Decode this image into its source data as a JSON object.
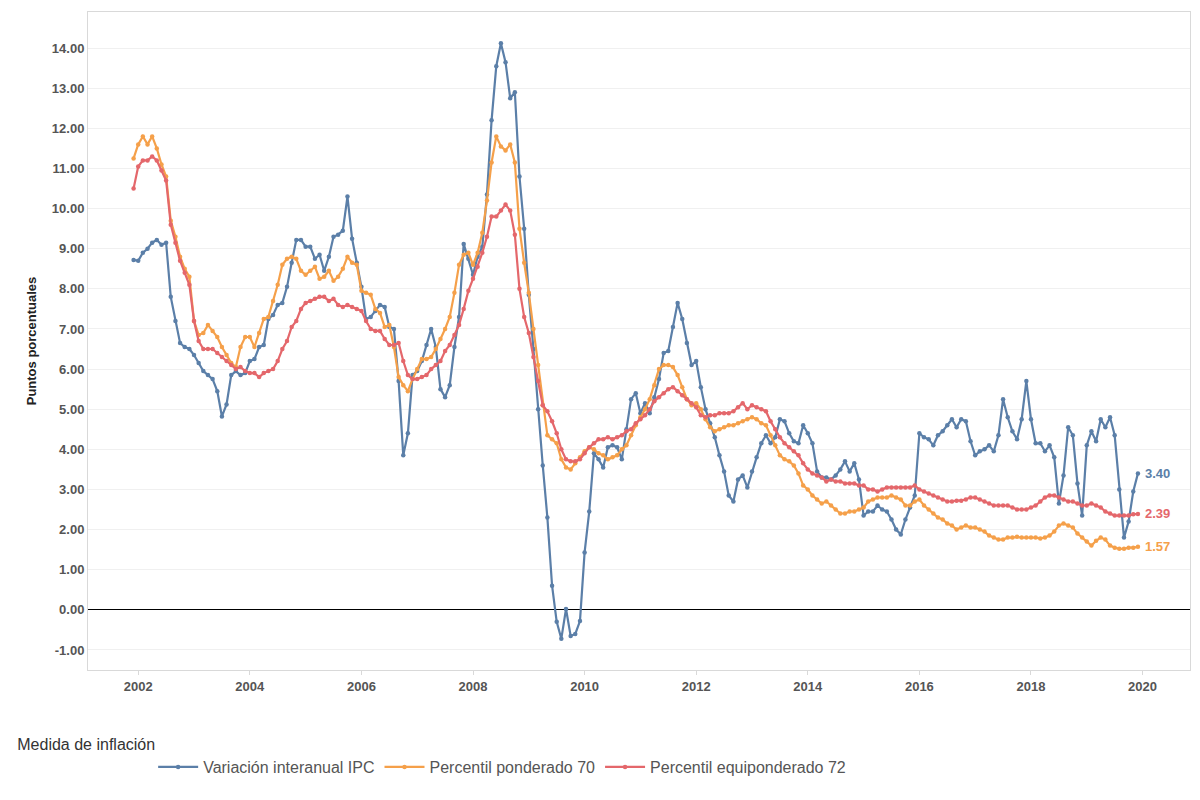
{
  "chart_data": {
    "type": "line",
    "ylabel": "Puntos porcentuales",
    "legend_title": "Medida de inflación",
    "legend": "bottom-left",
    "grid": true,
    "marker": "circle",
    "line_style": "solid",
    "xlim": [
      2001.1,
      2020.85
    ],
    "xticks": [
      2002,
      2004,
      2006,
      2008,
      2010,
      2012,
      2014,
      2016,
      2018,
      2020
    ],
    "ylim": [
      -1.5,
      14.9
    ],
    "yticks": [
      {
        "value": -1,
        "label": "-1.00"
      },
      {
        "value": 0,
        "label": "0.00"
      },
      {
        "value": 1,
        "label": "1.00"
      },
      {
        "value": 2,
        "label": "2.00"
      },
      {
        "value": 3,
        "label": "3.00"
      },
      {
        "value": 4,
        "label": "4.00"
      },
      {
        "value": 5,
        "label": "5.00"
      },
      {
        "value": 6,
        "label": "6.00"
      },
      {
        "value": 7,
        "label": "7.00"
      },
      {
        "value": 8,
        "label": "8.00"
      },
      {
        "value": 9,
        "label": "9.00"
      },
      {
        "value": 10,
        "label": "10.00"
      },
      {
        "value": 11,
        "label": "11.00"
      },
      {
        "value": 12,
        "label": "12.00"
      },
      {
        "value": 13,
        "label": "13.00"
      },
      {
        "value": 14,
        "label": "14.00"
      }
    ],
    "x": [
      2001.917,
      2002.0,
      2002.083,
      2002.167,
      2002.25,
      2002.333,
      2002.417,
      2002.5,
      2002.583,
      2002.667,
      2002.75,
      2002.833,
      2002.917,
      2003.0,
      2003.083,
      2003.167,
      2003.25,
      2003.333,
      2003.417,
      2003.5,
      2003.583,
      2003.667,
      2003.75,
      2003.833,
      2003.917,
      2004.0,
      2004.083,
      2004.167,
      2004.25,
      2004.333,
      2004.417,
      2004.5,
      2004.583,
      2004.667,
      2004.75,
      2004.833,
      2004.917,
      2005.0,
      2005.083,
      2005.167,
      2005.25,
      2005.333,
      2005.417,
      2005.5,
      2005.583,
      2005.667,
      2005.75,
      2005.833,
      2005.917,
      2006.0,
      2006.083,
      2006.167,
      2006.25,
      2006.333,
      2006.417,
      2006.5,
      2006.583,
      2006.667,
      2006.75,
      2006.833,
      2006.917,
      2007.0,
      2007.083,
      2007.167,
      2007.25,
      2007.333,
      2007.417,
      2007.5,
      2007.583,
      2007.667,
      2007.75,
      2007.833,
      2007.917,
      2008.0,
      2008.083,
      2008.167,
      2008.25,
      2008.333,
      2008.417,
      2008.5,
      2008.583,
      2008.667,
      2008.75,
      2008.833,
      2008.917,
      2009.0,
      2009.083,
      2009.167,
      2009.25,
      2009.333,
      2009.417,
      2009.5,
      2009.583,
      2009.667,
      2009.75,
      2009.833,
      2009.917,
      2010.0,
      2010.083,
      2010.167,
      2010.25,
      2010.333,
      2010.417,
      2010.5,
      2010.583,
      2010.667,
      2010.75,
      2010.833,
      2010.917,
      2011.0,
      2011.083,
      2011.167,
      2011.25,
      2011.333,
      2011.417,
      2011.5,
      2011.583,
      2011.667,
      2011.75,
      2011.833,
      2011.917,
      2012.0,
      2012.083,
      2012.167,
      2012.25,
      2012.333,
      2012.417,
      2012.5,
      2012.583,
      2012.667,
      2012.75,
      2012.833,
      2012.917,
      2013.0,
      2013.083,
      2013.167,
      2013.25,
      2013.333,
      2013.417,
      2013.5,
      2013.583,
      2013.667,
      2013.75,
      2013.833,
      2013.917,
      2014.0,
      2014.083,
      2014.167,
      2014.25,
      2014.333,
      2014.417,
      2014.5,
      2014.583,
      2014.667,
      2014.75,
      2014.833,
      2014.917,
      2015.0,
      2015.083,
      2015.167,
      2015.25,
      2015.333,
      2015.417,
      2015.5,
      2015.583,
      2015.667,
      2015.75,
      2015.833,
      2015.917,
      2016.0,
      2016.083,
      2016.167,
      2016.25,
      2016.333,
      2016.417,
      2016.5,
      2016.583,
      2016.667,
      2016.75,
      2016.833,
      2016.917,
      2017.0,
      2017.083,
      2017.167,
      2017.25,
      2017.333,
      2017.417,
      2017.5,
      2017.583,
      2017.667,
      2017.75,
      2017.833,
      2017.917,
      2018.0,
      2018.083,
      2018.167,
      2018.25,
      2018.333,
      2018.417,
      2018.5,
      2018.583,
      2018.667,
      2018.75,
      2018.833,
      2018.917,
      2019.0,
      2019.083,
      2019.167,
      2019.25,
      2019.333,
      2019.417,
      2019.5,
      2019.583,
      2019.667,
      2019.75,
      2019.833,
      2019.917
    ],
    "series": [
      {
        "name": "Variación interanual IPC",
        "color": "#5b7fa8",
        "values": [
          8.72,
          8.7,
          8.9,
          9.0,
          9.15,
          9.22,
          9.1,
          9.15,
          7.8,
          7.2,
          6.65,
          6.55,
          6.5,
          6.35,
          6.15,
          5.95,
          5.85,
          5.75,
          5.45,
          4.82,
          5.12,
          5.85,
          5.95,
          5.85,
          5.9,
          6.2,
          6.25,
          6.55,
          6.6,
          7.25,
          7.35,
          7.6,
          7.65,
          8.05,
          8.65,
          9.22,
          9.22,
          9.05,
          9.05,
          8.75,
          8.85,
          8.45,
          8.8,
          9.3,
          9.35,
          9.45,
          10.3,
          9.25,
          8.65,
          8.05,
          7.25,
          7.3,
          7.45,
          7.6,
          7.55,
          7.05,
          7.0,
          5.7,
          3.85,
          4.4,
          5.85,
          5.95,
          6.2,
          6.6,
          7.0,
          6.55,
          5.5,
          5.3,
          5.6,
          6.55,
          7.3,
          9.12,
          8.75,
          8.35,
          8.8,
          9.05,
          10.35,
          12.2,
          13.55,
          14.12,
          13.65,
          12.75,
          12.9,
          10.8,
          9.5,
          7.85,
          6.5,
          5.0,
          3.6,
          2.3,
          0.6,
          -0.3,
          -0.72,
          0.02,
          -0.65,
          -0.6,
          -0.28,
          1.43,
          2.45,
          3.9,
          3.75,
          3.55,
          4.05,
          4.1,
          4.05,
          3.75,
          4.5,
          5.25,
          5.4,
          4.9,
          5.15,
          4.9,
          5.3,
          5.75,
          6.4,
          6.45,
          7.05,
          7.65,
          7.25,
          6.65,
          6.1,
          6.2,
          5.55,
          5.0,
          4.65,
          4.3,
          3.85,
          3.45,
          2.85,
          2.7,
          3.25,
          3.35,
          3.05,
          3.45,
          3.8,
          4.15,
          4.35,
          4.15,
          4.3,
          4.75,
          4.7,
          4.4,
          4.2,
          4.15,
          4.6,
          4.4,
          4.15,
          3.45,
          3.3,
          3.3,
          3.25,
          3.35,
          3.5,
          3.7,
          3.45,
          3.65,
          3.25,
          2.35,
          2.45,
          2.45,
          2.6,
          2.5,
          2.45,
          2.25,
          2.0,
          1.88,
          2.25,
          2.55,
          2.85,
          4.4,
          4.3,
          4.25,
          4.1,
          4.35,
          4.45,
          4.6,
          4.75,
          4.55,
          4.75,
          4.7,
          4.2,
          3.85,
          3.95,
          4.0,
          4.1,
          3.95,
          4.35,
          5.25,
          4.8,
          4.45,
          4.25,
          4.75,
          5.7,
          4.75,
          4.15,
          4.15,
          3.95,
          4.1,
          3.8,
          2.65,
          3.35,
          4.55,
          4.35,
          3.15,
          2.35,
          4.1,
          4.45,
          4.2,
          4.75,
          4.55,
          4.8,
          4.35,
          3.0,
          1.8,
          2.2,
          2.95,
          3.4
        ]
      },
      {
        "name": "Percentil ponderado 70",
        "color": "#f5a04a",
        "values": [
          11.25,
          11.6,
          11.8,
          11.6,
          11.8,
          11.5,
          11.1,
          10.8,
          9.7,
          9.3,
          8.8,
          8.5,
          8.3,
          7.2,
          6.85,
          6.9,
          7.1,
          6.95,
          6.8,
          6.55,
          6.35,
          6.15,
          6.05,
          6.55,
          6.8,
          6.8,
          6.55,
          6.9,
          7.25,
          7.3,
          7.7,
          8.1,
          8.6,
          8.75,
          8.8,
          8.75,
          8.45,
          8.35,
          8.45,
          8.55,
          8.25,
          8.3,
          8.45,
          8.2,
          8.3,
          8.5,
          8.8,
          8.65,
          8.6,
          7.95,
          7.9,
          7.85,
          7.5,
          7.4,
          7.05,
          7.1,
          6.55,
          5.8,
          5.6,
          5.45,
          5.75,
          6.0,
          6.25,
          6.25,
          6.3,
          6.5,
          6.75,
          7.0,
          7.3,
          7.9,
          8.6,
          8.85,
          8.9,
          8.6,
          8.9,
          9.4,
          10.2,
          11.15,
          11.8,
          11.55,
          11.45,
          11.6,
          11.15,
          9.5,
          8.65,
          7.9,
          7.0,
          6.1,
          5.1,
          4.35,
          4.25,
          4.15,
          3.75,
          3.55,
          3.5,
          3.65,
          3.8,
          3.95,
          4.05,
          4.0,
          3.9,
          3.85,
          3.75,
          3.8,
          3.85,
          4.0,
          4.1,
          4.35,
          4.6,
          4.8,
          5.0,
          5.25,
          5.6,
          6.0,
          6.1,
          6.1,
          6.05,
          5.85,
          5.55,
          5.25,
          5.1,
          5.15,
          5.0,
          4.75,
          4.55,
          4.45,
          4.5,
          4.55,
          4.6,
          4.6,
          4.65,
          4.7,
          4.75,
          4.8,
          4.75,
          4.65,
          4.6,
          4.35,
          4.1,
          3.85,
          3.75,
          3.7,
          3.6,
          3.4,
          3.1,
          3.0,
          2.85,
          2.75,
          2.65,
          2.7,
          2.6,
          2.5,
          2.4,
          2.4,
          2.45,
          2.45,
          2.5,
          2.55,
          2.7,
          2.75,
          2.8,
          2.8,
          2.8,
          2.85,
          2.8,
          2.75,
          2.6,
          2.6,
          2.7,
          2.75,
          2.6,
          2.5,
          2.4,
          2.3,
          2.25,
          2.15,
          2.1,
          2.0,
          2.05,
          2.1,
          2.05,
          2.05,
          2.0,
          1.95,
          1.85,
          1.8,
          1.75,
          1.75,
          1.8,
          1.8,
          1.82,
          1.8,
          1.8,
          1.8,
          1.8,
          1.78,
          1.8,
          1.85,
          1.95,
          2.1,
          2.15,
          2.1,
          2.05,
          1.9,
          1.8,
          1.7,
          1.6,
          1.72,
          1.8,
          1.75,
          1.6,
          1.55,
          1.52,
          1.52,
          1.55,
          1.55,
          1.57
        ]
      },
      {
        "name": "Percentil equiponderado 72",
        "color": "#e4676b",
        "values": [
          10.5,
          11.05,
          11.2,
          11.2,
          11.3,
          11.2,
          10.95,
          10.7,
          9.6,
          9.15,
          8.7,
          8.4,
          8.1,
          7.2,
          6.7,
          6.5,
          6.5,
          6.5,
          6.4,
          6.3,
          6.2,
          6.1,
          6.0,
          6.05,
          5.95,
          5.9,
          5.9,
          5.8,
          5.9,
          5.95,
          6.0,
          6.2,
          6.5,
          6.7,
          7.05,
          7.2,
          7.5,
          7.65,
          7.7,
          7.75,
          7.8,
          7.8,
          7.7,
          7.75,
          7.6,
          7.55,
          7.6,
          7.55,
          7.5,
          7.45,
          7.2,
          7.0,
          6.95,
          6.95,
          6.75,
          6.6,
          6.6,
          6.65,
          6.2,
          5.85,
          5.75,
          5.75,
          5.8,
          5.85,
          6.0,
          6.1,
          6.2,
          6.45,
          6.6,
          6.85,
          7.1,
          7.5,
          7.95,
          8.25,
          8.55,
          8.9,
          9.3,
          9.8,
          9.8,
          9.95,
          10.1,
          9.95,
          9.35,
          8.0,
          7.3,
          6.9,
          6.3,
          5.7,
          5.1,
          4.95,
          4.7,
          4.4,
          4.0,
          3.75,
          3.7,
          3.7,
          3.75,
          3.9,
          4.05,
          4.15,
          4.25,
          4.25,
          4.3,
          4.25,
          4.3,
          4.35,
          4.45,
          4.5,
          4.65,
          4.75,
          4.85,
          5.0,
          5.2,
          5.3,
          5.4,
          5.5,
          5.55,
          5.45,
          5.35,
          5.25,
          5.15,
          5.05,
          4.85,
          4.8,
          4.85,
          4.85,
          4.9,
          4.9,
          4.9,
          4.95,
          5.05,
          5.15,
          5.0,
          5.1,
          5.05,
          5.0,
          4.95,
          4.7,
          4.5,
          4.3,
          4.15,
          4.05,
          3.95,
          3.85,
          3.65,
          3.5,
          3.4,
          3.35,
          3.3,
          3.2,
          3.25,
          3.2,
          3.2,
          3.15,
          3.15,
          3.15,
          3.1,
          3.1,
          3.0,
          3.0,
          2.95,
          3.0,
          3.05,
          3.05,
          3.05,
          3.05,
          3.05,
          3.05,
          3.1,
          3.0,
          2.95,
          2.9,
          2.85,
          2.8,
          2.75,
          2.7,
          2.7,
          2.72,
          2.72,
          2.75,
          2.8,
          2.8,
          2.75,
          2.7,
          2.65,
          2.6,
          2.6,
          2.6,
          2.6,
          2.55,
          2.5,
          2.5,
          2.5,
          2.55,
          2.6,
          2.7,
          2.8,
          2.85,
          2.85,
          2.8,
          2.75,
          2.7,
          2.7,
          2.65,
          2.6,
          2.6,
          2.65,
          2.6,
          2.55,
          2.45,
          2.4,
          2.35,
          2.35,
          2.35,
          2.35,
          2.38,
          2.39
        ]
      }
    ],
    "annotations": [
      {
        "series": "Variación interanual IPC",
        "text": "3.40"
      },
      {
        "series": "Percentil equiponderado 72",
        "text": "2.39"
      },
      {
        "series": "Percentil ponderado 70",
        "text": "1.57"
      }
    ]
  }
}
